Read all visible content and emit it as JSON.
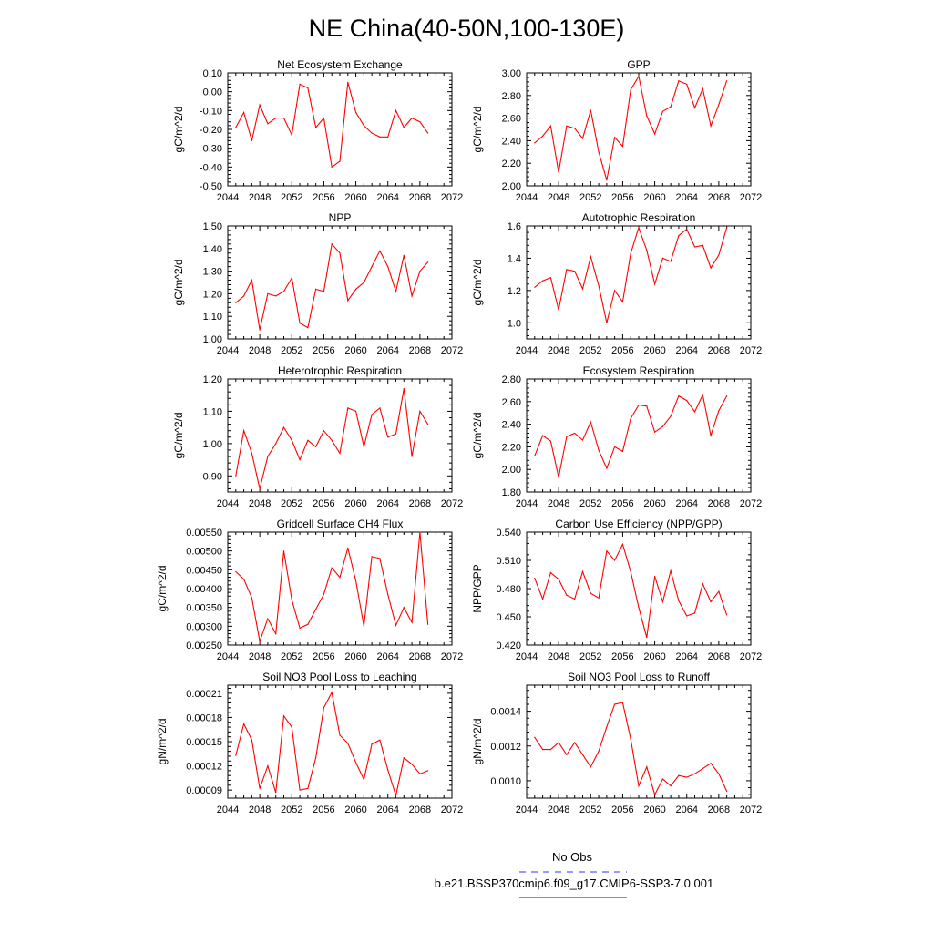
{
  "figure": {
    "title": "NE China(40-50N,100-130E)",
    "legend": {
      "obs_label": "No Obs",
      "obs_color": "#5a5aff",
      "model_label": "b.e21.BSSP370cmip6.f09_g17.CMIP6-SSP3-7.0.001",
      "model_color": "#ff0000"
    }
  },
  "chart_data": [
    {
      "type": "line",
      "title": "Net Ecosystem Exchange",
      "ylabel": "gC/m^2/d",
      "xlabel": "",
      "xlim": [
        2044,
        2072
      ],
      "ylim": [
        -0.5,
        0.1
      ],
      "xticks": [
        "2044",
        "2048",
        "2052",
        "2056",
        "2060",
        "2064",
        "2068",
        "2072"
      ],
      "yticks": [
        "0.10",
        "0.00",
        "-0.10",
        "-0.20",
        "-0.30",
        "-0.40",
        "-0.50"
      ],
      "grid": false,
      "color": "#ff0000",
      "x": [
        2045,
        2046,
        2047,
        2048,
        2049,
        2050,
        2051,
        2052,
        2053,
        2054,
        2055,
        2056,
        2057,
        2058,
        2059,
        2060,
        2061,
        2062,
        2063,
        2064,
        2065,
        2066,
        2067,
        2068,
        2069
      ],
      "values": [
        -0.19,
        -0.11,
        -0.26,
        -0.07,
        -0.17,
        -0.14,
        -0.14,
        -0.23,
        0.04,
        0.02,
        -0.19,
        -0.14,
        -0.4,
        -0.37,
        0.05,
        -0.11,
        -0.18,
        -0.22,
        -0.24,
        -0.24,
        -0.1,
        -0.19,
        -0.14,
        -0.16,
        -0.22
      ]
    },
    {
      "type": "line",
      "title": "GPP",
      "ylabel": "gC/m^2/d",
      "xlabel": "",
      "xlim": [
        2044,
        2072
      ],
      "ylim": [
        2.0,
        3.0
      ],
      "xticks": [
        "2044",
        "2048",
        "2052",
        "2056",
        "2060",
        "2064",
        "2068",
        "2072"
      ],
      "yticks": [
        "3.00",
        "2.80",
        "2.60",
        "2.40",
        "2.20",
        "2.00"
      ],
      "grid": false,
      "color": "#ff0000",
      "x": [
        2045,
        2046,
        2047,
        2048,
        2049,
        2050,
        2051,
        2052,
        2053,
        2054,
        2055,
        2056,
        2057,
        2058,
        2059,
        2060,
        2061,
        2062,
        2063,
        2064,
        2065,
        2066,
        2067,
        2068,
        2069
      ],
      "values": [
        2.38,
        2.44,
        2.53,
        2.12,
        2.53,
        2.51,
        2.42,
        2.67,
        2.3,
        2.05,
        2.43,
        2.35,
        2.85,
        2.97,
        2.62,
        2.46,
        2.66,
        2.7,
        2.93,
        2.9,
        2.69,
        2.86,
        2.53,
        2.72,
        2.93
      ]
    },
    {
      "type": "line",
      "title": "NPP",
      "ylabel": "gC/m^2/d",
      "xlabel": "",
      "xlim": [
        2044,
        2072
      ],
      "ylim": [
        1.0,
        1.5
      ],
      "xticks": [
        "2044",
        "2048",
        "2052",
        "2056",
        "2060",
        "2064",
        "2068",
        "2072"
      ],
      "yticks": [
        "1.50",
        "1.40",
        "1.30",
        "1.20",
        "1.10",
        "1.00"
      ],
      "grid": false,
      "color": "#ff0000",
      "x": [
        2045,
        2046,
        2047,
        2048,
        2049,
        2050,
        2051,
        2052,
        2053,
        2054,
        2055,
        2056,
        2057,
        2058,
        2059,
        2060,
        2061,
        2062,
        2063,
        2064,
        2065,
        2066,
        2067,
        2068,
        2069
      ],
      "values": [
        1.16,
        1.19,
        1.26,
        1.04,
        1.2,
        1.19,
        1.21,
        1.27,
        1.07,
        1.05,
        1.22,
        1.21,
        1.42,
        1.38,
        1.17,
        1.22,
        1.25,
        1.32,
        1.39,
        1.32,
        1.21,
        1.37,
        1.19,
        1.3,
        1.34
      ]
    },
    {
      "type": "line",
      "title": "Autotrophic Respiration",
      "ylabel": "gC/m^2/d",
      "xlabel": "",
      "xlim": [
        2044,
        2072
      ],
      "ylim": [
        0.9,
        1.6
      ],
      "xticks": [
        "2044",
        "2048",
        "2052",
        "2056",
        "2060",
        "2064",
        "2068",
        "2072"
      ],
      "yticks": [
        "1.6",
        "1.4",
        "1.2",
        "1.0"
      ],
      "grid": false,
      "color": "#ff0000",
      "x": [
        2045,
        2046,
        2047,
        2048,
        2049,
        2050,
        2051,
        2052,
        2053,
        2054,
        2055,
        2056,
        2057,
        2058,
        2059,
        2060,
        2061,
        2062,
        2063,
        2064,
        2065,
        2066,
        2067,
        2068,
        2069
      ],
      "values": [
        1.22,
        1.26,
        1.28,
        1.08,
        1.33,
        1.32,
        1.21,
        1.41,
        1.23,
        1.0,
        1.2,
        1.13,
        1.43,
        1.59,
        1.45,
        1.24,
        1.4,
        1.38,
        1.54,
        1.58,
        1.47,
        1.48,
        1.34,
        1.42,
        1.59
      ]
    },
    {
      "type": "line",
      "title": "Heterotrophic Respiration",
      "ylabel": "gC/m^2/d",
      "xlabel": "",
      "xlim": [
        2044,
        2072
      ],
      "ylim": [
        0.85,
        1.2
      ],
      "xticks": [
        "2044",
        "2048",
        "2052",
        "2056",
        "2060",
        "2064",
        "2068",
        "2072"
      ],
      "yticks": [
        "1.20",
        "1.10",
        "1.00",
        "0.90"
      ],
      "grid": false,
      "color": "#ff0000",
      "x": [
        2045,
        2046,
        2047,
        2048,
        2049,
        2050,
        2051,
        2052,
        2053,
        2054,
        2055,
        2056,
        2057,
        2058,
        2059,
        2060,
        2061,
        2062,
        2063,
        2064,
        2065,
        2066,
        2067,
        2068,
        2069
      ],
      "values": [
        0.9,
        1.04,
        0.97,
        0.86,
        0.96,
        1.0,
        1.05,
        1.01,
        0.95,
        1.01,
        0.99,
        1.04,
        1.01,
        0.97,
        1.11,
        1.1,
        0.99,
        1.09,
        1.11,
        1.02,
        1.03,
        1.17,
        0.96,
        1.1,
        1.06
      ]
    },
    {
      "type": "line",
      "title": "Ecosystem Respiration",
      "ylabel": "gC/m^2/d",
      "xlabel": "",
      "xlim": [
        2044,
        2072
      ],
      "ylim": [
        1.8,
        2.8
      ],
      "xticks": [
        "2044",
        "2048",
        "2052",
        "2056",
        "2060",
        "2064",
        "2068",
        "2072"
      ],
      "yticks": [
        "2.80",
        "2.60",
        "2.40",
        "2.20",
        "2.00",
        "1.80"
      ],
      "grid": false,
      "color": "#ff0000",
      "x": [
        2045,
        2046,
        2047,
        2048,
        2049,
        2050,
        2051,
        2052,
        2053,
        2054,
        2055,
        2056,
        2057,
        2058,
        2059,
        2060,
        2061,
        2062,
        2063,
        2064,
        2065,
        2066,
        2067,
        2068,
        2069
      ],
      "values": [
        2.12,
        2.3,
        2.25,
        1.93,
        2.29,
        2.32,
        2.26,
        2.42,
        2.17,
        2.01,
        2.2,
        2.16,
        2.45,
        2.57,
        2.56,
        2.33,
        2.38,
        2.47,
        2.65,
        2.61,
        2.51,
        2.66,
        2.3,
        2.52,
        2.65
      ]
    },
    {
      "type": "line",
      "title": "Gridcell Surface CH4 Flux",
      "ylabel": "gC/m^2/d",
      "xlabel": "",
      "xlim": [
        2044,
        2072
      ],
      "ylim": [
        0.0025,
        0.0055
      ],
      "xticks": [
        "2044",
        "2048",
        "2052",
        "2056",
        "2060",
        "2064",
        "2068",
        "2072"
      ],
      "yticks": [
        "0.00550",
        "0.00500",
        "0.00450",
        "0.00400",
        "0.00350",
        "0.00300",
        "0.00250"
      ],
      "grid": false,
      "color": "#ff0000",
      "x": [
        2045,
        2046,
        2047,
        2048,
        2049,
        2050,
        2051,
        2052,
        2053,
        2054,
        2055,
        2056,
        2057,
        2058,
        2059,
        2060,
        2061,
        2062,
        2063,
        2064,
        2065,
        2066,
        2067,
        2068,
        2069
      ],
      "values": [
        0.00445,
        0.00425,
        0.00375,
        0.0026,
        0.0032,
        0.0028,
        0.005,
        0.0037,
        0.00295,
        0.00305,
        0.00345,
        0.00385,
        0.00455,
        0.0043,
        0.00508,
        0.0042,
        0.003,
        0.00485,
        0.0048,
        0.00385,
        0.00302,
        0.0035,
        0.0031,
        0.0055,
        0.00305
      ]
    },
    {
      "type": "line",
      "title": "Carbon Use Efficiency (NPP/GPP)",
      "ylabel": "NPP/GPP",
      "xlabel": "",
      "xlim": [
        2044,
        2072
      ],
      "ylim": [
        0.42,
        0.54
      ],
      "xticks": [
        "2044",
        "2048",
        "2052",
        "2056",
        "2060",
        "2064",
        "2068",
        "2072"
      ],
      "yticks": [
        "0.540",
        "0.510",
        "0.480",
        "0.450",
        "0.420"
      ],
      "grid": false,
      "color": "#ff0000",
      "x": [
        2045,
        2046,
        2047,
        2048,
        2049,
        2050,
        2051,
        2052,
        2053,
        2054,
        2055,
        2056,
        2057,
        2058,
        2059,
        2060,
        2061,
        2062,
        2063,
        2064,
        2065,
        2066,
        2067,
        2068,
        2069
      ],
      "values": [
        0.491,
        0.469,
        0.497,
        0.49,
        0.473,
        0.469,
        0.498,
        0.475,
        0.47,
        0.52,
        0.51,
        0.527,
        0.498,
        0.46,
        0.428,
        0.493,
        0.466,
        0.499,
        0.467,
        0.451,
        0.454,
        0.485,
        0.466,
        0.477,
        0.452
      ]
    },
    {
      "type": "line",
      "title": "Soil NO3 Pool Loss to Leaching",
      "ylabel": "gN/m^2/d",
      "xlabel": "",
      "xlim": [
        2044,
        2072
      ],
      "ylim": [
        8e-05,
        0.00022
      ],
      "xticks": [
        "2044",
        "2048",
        "2052",
        "2056",
        "2060",
        "2064",
        "2068",
        "2072"
      ],
      "yticks": [
        "0.00021",
        "0.00018",
        "0.00015",
        "0.00012",
        "0.00009"
      ],
      "grid": false,
      "color": "#ff0000",
      "x": [
        2045,
        2046,
        2047,
        2048,
        2049,
        2050,
        2051,
        2052,
        2053,
        2054,
        2055,
        2056,
        2057,
        2058,
        2059,
        2060,
        2061,
        2062,
        2063,
        2064,
        2065,
        2066,
        2067,
        2068,
        2069
      ],
      "values": [
        0.000133,
        0.000172,
        0.000152,
        9.2e-05,
        0.00012,
        8.7e-05,
        0.000182,
        0.000168,
        9e-05,
        9.2e-05,
        0.00013,
        0.000192,
        0.000211,
        0.000158,
        0.000148,
        0.000124,
        0.000103,
        0.000147,
        0.000152,
        0.000115,
        8.3e-05,
        0.00013,
        0.000122,
        0.00011,
        0.000114
      ]
    },
    {
      "type": "line",
      "title": "Soil NO3 Pool Loss to Runoff",
      "ylabel": "gN/m^2/d",
      "xlabel": "",
      "xlim": [
        2044,
        2072
      ],
      "ylim": [
        0.0009,
        0.00155
      ],
      "xticks": [
        "2044",
        "2048",
        "2052",
        "2056",
        "2060",
        "2064",
        "2068",
        "2072"
      ],
      "yticks": [
        "0.0014",
        "0.0012",
        "0.0010"
      ],
      "grid": false,
      "color": "#ff0000",
      "x": [
        2045,
        2046,
        2047,
        2048,
        2049,
        2050,
        2051,
        2052,
        2053,
        2054,
        2055,
        2056,
        2057,
        2058,
        2059,
        2060,
        2061,
        2062,
        2063,
        2064,
        2065,
        2066,
        2067,
        2068,
        2069
      ],
      "values": [
        0.00125,
        0.00118,
        0.00118,
        0.00122,
        0.00115,
        0.00122,
        0.00115,
        0.00108,
        0.00117,
        0.00131,
        0.00144,
        0.00145,
        0.00124,
        0.00097,
        0.00108,
        0.00092,
        0.00101,
        0.00097,
        0.00103,
        0.00102,
        0.00104,
        0.00107,
        0.0011,
        0.00104,
        0.00094
      ]
    }
  ]
}
